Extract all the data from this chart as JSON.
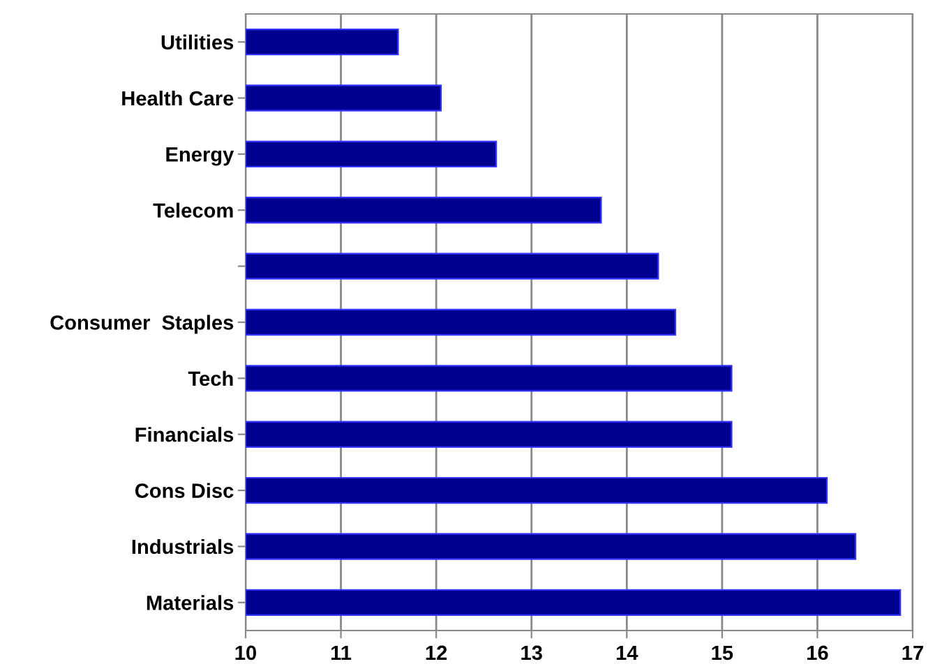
{
  "chart_data": {
    "type": "bar",
    "orientation": "horizontal",
    "categories": [
      "Utilities",
      "Health Care",
      "Energy",
      "Telecom",
      null,
      "Consumer  Staples",
      "Tech",
      "Financials",
      "Cons Disc",
      "Industrials",
      "Materials"
    ],
    "values": [
      11.6,
      12.05,
      12.63,
      13.73,
      14.33,
      14.51,
      15.1,
      15.1,
      16.1,
      16.4,
      16.87
    ],
    "color": "#000090",
    "xlim": [
      10,
      17
    ],
    "xticks": [
      10,
      11,
      12,
      13,
      14,
      15,
      16,
      17
    ],
    "grid": "x"
  }
}
